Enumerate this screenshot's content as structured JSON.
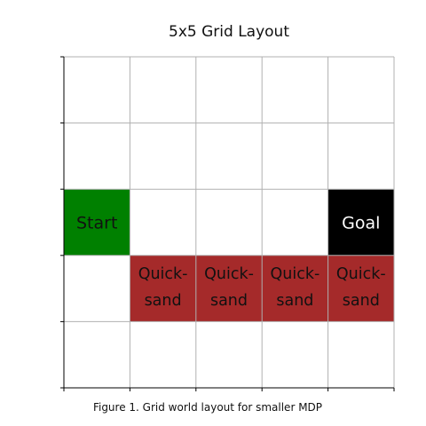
{
  "title": "5x5 Grid Layout",
  "caption": "Figure 1. Grid world layout for smaller MDP",
  "grid": {
    "rows": 5,
    "cols": 5,
    "cells": [
      {
        "row": 2,
        "col": 0,
        "type": "start",
        "label": [
          "Start"
        ],
        "color": "#008000",
        "text_color": "#111111"
      },
      {
        "row": 2,
        "col": 4,
        "type": "goal",
        "label": [
          "Goal"
        ],
        "color": "#000000",
        "text_color": "#ffffff"
      },
      {
        "row": 3,
        "col": 1,
        "type": "quicksand",
        "label": [
          "Quick-",
          "sand"
        ],
        "color": "#a52a2a",
        "text_color": "#111111"
      },
      {
        "row": 3,
        "col": 2,
        "type": "quicksand",
        "label": [
          "Quick-",
          "sand"
        ],
        "color": "#a52a2a",
        "text_color": "#111111"
      },
      {
        "row": 3,
        "col": 3,
        "type": "quicksand",
        "label": [
          "Quick-",
          "sand"
        ],
        "color": "#a52a2a",
        "text_color": "#111111"
      },
      {
        "row": 3,
        "col": 4,
        "type": "quicksand",
        "label": [
          "Quick-",
          "sand"
        ],
        "color": "#a52a2a",
        "text_color": "#111111"
      }
    ],
    "gridline_color": "#b0b0b0",
    "axis_color": "#000000"
  }
}
